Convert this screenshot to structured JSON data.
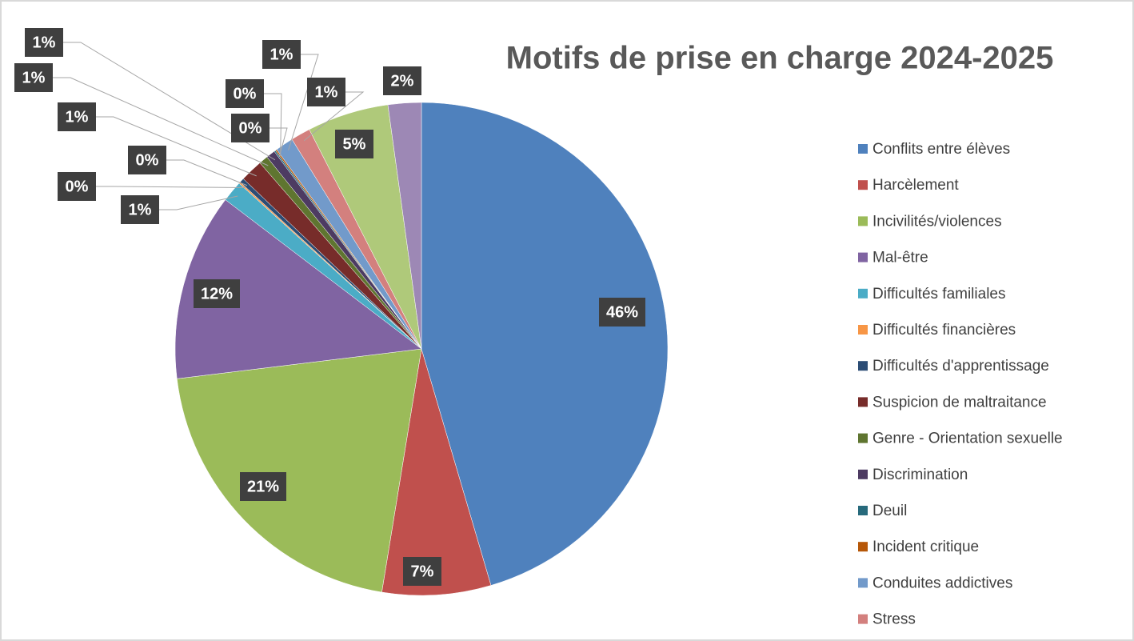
{
  "chart_data": {
    "type": "pie",
    "title": "Motifs de prise en charge 2024-2025",
    "categories": [
      "Conflits entre élèves",
      "Harcèlement",
      "Incivilités/violences",
      "Mal-être",
      "Difficultés familiales",
      "Difficultés financières",
      "Difficultés d'apprentissage",
      "Suspicion de maltraitance",
      "Genre - Orientation sexuelle",
      "Discrimination",
      "Deuil",
      "Incident critique",
      "Conduites addictives",
      "Stress",
      null,
      null
    ],
    "values": [
      45.9,
      7.2,
      20.7,
      12.4,
      1.4,
      0.1,
      0.3,
      1.5,
      0.6,
      0.6,
      0.1,
      0.1,
      1.2,
      1.3,
      5.4,
      2.2
    ],
    "value_labels": [
      "46%",
      "7%",
      "21%",
      "12%",
      "1%",
      "0%",
      "0%",
      "1%",
      "1%",
      "1%",
      "0%",
      "0%",
      "1%",
      "1%",
      "5%",
      "2%"
    ],
    "colors": [
      "#4f81bd",
      "#c0504d",
      "#9bbb59",
      "#8064a2",
      "#4bacc6",
      "#f79646",
      "#2c4d75",
      "#772c2a",
      "#5f7530",
      "#4d3b62",
      "#276a7c",
      "#b65708",
      "#729aca",
      "#d3807e",
      "#afc97a",
      "#9d88b5"
    ],
    "legend": "right"
  }
}
